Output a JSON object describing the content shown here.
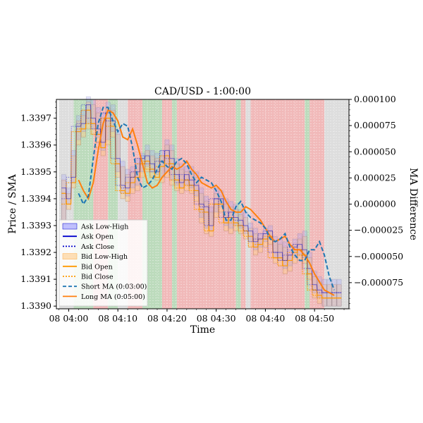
{
  "chart_data": {
    "type": "line",
    "title": "CAD/USD - 1:00:00",
    "xlabel": "Time",
    "ylabel": "Price / SMA",
    "y2label": "MA Difference",
    "x_range": [
      "04:00 -2m",
      "04:57"
    ],
    "ylim": [
      1.33899,
      1.33977
    ],
    "y2lim": [
      -0.0001,
      0.0001
    ],
    "x_ticks": [
      "08 04:00",
      "08 04:10",
      "08 04:20",
      "08 04:30",
      "08 04:40",
      "08 04:50"
    ],
    "y_ticks": [
      "1.3390",
      "1.3391",
      "1.3392",
      "1.3393",
      "1.3394",
      "1.3395",
      "1.3396",
      "1.3397"
    ],
    "y2_ticks": [
      "0.000100",
      "0.000075",
      "0.000050",
      "0.000025",
      "0.000000",
      "−0.000025",
      "−0.000050",
      "−0.000075"
    ],
    "legend": {
      "position": "lower-left",
      "entries": [
        "Ask Low-High",
        "Ask Open",
        "Ask Close",
        "Bid Low-High",
        "Bid Open",
        "Bid Close",
        "Short MA (0:03:00)",
        "Long MA (0:05:00)"
      ]
    },
    "regions": [
      {
        "from": -2,
        "to": 1,
        "signal": "neutral"
      },
      {
        "from": 1,
        "to": 5,
        "signal": "positive"
      },
      {
        "from": 5,
        "to": 8,
        "signal": "negative"
      },
      {
        "from": 8,
        "to": 10,
        "signal": "positive"
      },
      {
        "from": 10,
        "to": 12,
        "signal": "neutral"
      },
      {
        "from": 12,
        "to": 15,
        "signal": "negative"
      },
      {
        "from": 15,
        "to": 19,
        "signal": "positive"
      },
      {
        "from": 19,
        "to": 21,
        "signal": "negative"
      },
      {
        "from": 21,
        "to": 22,
        "signal": "positive"
      },
      {
        "from": 22,
        "to": 34,
        "signal": "negative"
      },
      {
        "from": 34,
        "to": 35,
        "signal": "positive"
      },
      {
        "from": 35,
        "to": 36,
        "signal": "negative"
      },
      {
        "from": 36,
        "to": 37,
        "signal": "neutral"
      },
      {
        "from": 37,
        "to": 48,
        "signal": "negative"
      },
      {
        "from": 48,
        "to": 49,
        "signal": "positive"
      },
      {
        "from": 49,
        "to": 52,
        "signal": "negative"
      },
      {
        "from": 52,
        "to": 57,
        "signal": "neutral"
      }
    ],
    "x_minutes": [
      -1,
      0,
      1,
      2,
      3,
      4,
      5,
      6,
      7,
      8,
      9,
      10,
      11,
      12,
      13,
      14,
      15,
      16,
      17,
      18,
      19,
      20,
      21,
      22,
      23,
      24,
      25,
      26,
      27,
      28,
      29,
      30,
      31,
      32,
      33,
      34,
      35,
      36,
      37,
      38,
      39,
      40,
      41,
      42,
      43,
      44,
      45,
      46,
      47,
      48,
      49,
      50,
      51,
      52,
      53,
      54,
      55
    ],
    "series": [
      {
        "name": "Short MA (0:03:00)",
        "values": [
          1.33942,
          1.33938,
          1.33941,
          1.33955,
          1.33968,
          1.33974,
          1.33974,
          1.33969,
          1.33965,
          1.33968,
          1.33967,
          1.33959,
          1.33948,
          1.33944,
          1.33945,
          1.33947,
          1.33951,
          1.33954,
          1.33952,
          1.33951,
          1.33954,
          1.33955,
          1.33953,
          1.33949,
          1.33946,
          1.33948,
          1.33947,
          1.33946,
          1.33943,
          1.33939,
          1.33932,
          1.33932,
          1.33937,
          1.33939,
          1.33935,
          1.33933,
          1.33932,
          1.33931,
          1.33929,
          1.33925,
          1.33924,
          1.33925,
          1.33927,
          1.33922,
          1.33919,
          1.33917,
          1.33917,
          1.33921,
          1.33921,
          1.33924,
          1.33919,
          1.33911,
          1.33906
        ]
      },
      {
        "name": "Long MA (0:05:00)",
        "values": [
          1.33947,
          1.33943,
          1.3394,
          1.33946,
          1.33958,
          1.33968,
          1.33973,
          1.33972,
          1.33969,
          1.33963,
          1.33962,
          1.33966,
          1.3396,
          1.33953,
          1.33946,
          1.33944,
          1.33945,
          1.33948,
          1.3395,
          1.33952,
          1.33951,
          1.33952,
          1.33954,
          1.33951,
          1.33949,
          1.33946,
          1.33945,
          1.33944,
          1.33945,
          1.33943,
          1.33939,
          1.33936,
          1.33935,
          1.33935,
          1.33937,
          1.33936,
          1.33934,
          1.33932,
          1.33929,
          1.33926,
          1.33924,
          1.33925,
          1.33926,
          1.33923,
          1.33921,
          1.33921,
          1.33919,
          1.33916,
          1.33912,
          1.33909,
          1.33906,
          1.33905,
          1.33904
        ]
      },
      {
        "name": "Ask Low-High",
        "low": [
          1.33932,
          1.33938,
          1.33946,
          1.33962,
          1.33965,
          1.33968,
          1.33966,
          1.33963,
          1.33958,
          1.33962,
          1.33965,
          1.3395,
          1.33942,
          1.33941,
          1.33944,
          1.33945,
          1.3395,
          1.33952,
          1.3395,
          1.33949,
          1.33948,
          1.3395,
          1.33947,
          1.33945,
          1.33944,
          1.33945,
          1.33944,
          1.33941,
          1.33933,
          1.33929,
          1.33928,
          1.33935,
          1.33937,
          1.3393,
          1.33929,
          1.3393,
          1.33929,
          1.33927,
          1.33924,
          1.33921,
          1.33922,
          1.33924,
          1.33925,
          1.33918,
          1.33917,
          1.33914,
          1.33915,
          1.33918,
          1.33919,
          1.33918,
          1.33912,
          1.33905,
          1.33903,
          1.339,
          1.339,
          1.339,
          1.339
        ],
        "high": [
          1.33949,
          1.33944,
          1.33958,
          1.33971,
          1.33973,
          1.33978,
          1.33977,
          1.33974,
          1.33972,
          1.33976,
          1.33975,
          1.33966,
          1.33954,
          1.33951,
          1.33952,
          1.33955,
          1.33957,
          1.3396,
          1.33958,
          1.33957,
          1.33958,
          1.33962,
          1.3396,
          1.33955,
          1.33953,
          1.33952,
          1.33952,
          1.3395,
          1.33944,
          1.33941,
          1.33937,
          1.33944,
          1.33943,
          1.3394,
          1.33939,
          1.33938,
          1.33936,
          1.33935,
          1.33931,
          1.33929,
          1.33927,
          1.33929,
          1.3393,
          1.33926,
          1.33925,
          1.33924,
          1.33921,
          1.33925,
          1.33927,
          1.33928,
          1.3392,
          1.33913,
          1.33911,
          1.3391,
          1.3391,
          1.3391,
          1.3391
        ]
      },
      {
        "name": "Ask Open",
        "values": [
          1.33944,
          1.3394,
          1.33948,
          1.33967,
          1.33968,
          1.33975,
          1.3397,
          1.33966,
          1.33961,
          1.33972,
          1.33969,
          1.33955,
          1.33945,
          1.33944,
          1.33948,
          1.3395,
          1.33955,
          1.33956,
          1.33953,
          1.3395,
          1.33954,
          1.33958,
          1.33955,
          1.33949,
          1.33946,
          1.33949,
          1.33947,
          1.33945,
          1.33938,
          1.33937,
          1.3393,
          1.3394,
          1.3394,
          1.33933,
          1.33935,
          1.33933,
          1.33932,
          1.3393,
          1.33928,
          1.33924,
          1.33925,
          1.33927,
          1.33928,
          1.3392,
          1.3392,
          1.33917,
          1.33919,
          1.33922,
          1.33923,
          1.33921,
          1.33914,
          1.33908,
          1.33906,
          1.33905,
          1.33905,
          1.33905,
          1.33905
        ]
      },
      {
        "name": "Ask Close",
        "values": [
          1.3394,
          1.33948,
          1.33967,
          1.33968,
          1.33975,
          1.3397,
          1.33966,
          1.33961,
          1.33972,
          1.33969,
          1.33955,
          1.33945,
          1.33944,
          1.33948,
          1.3395,
          1.33955,
          1.33956,
          1.33953,
          1.3395,
          1.33954,
          1.33958,
          1.33955,
          1.33949,
          1.33946,
          1.33949,
          1.33947,
          1.33945,
          1.33938,
          1.33937,
          1.3393,
          1.3394,
          1.3394,
          1.33933,
          1.33935,
          1.33933,
          1.33932,
          1.3393,
          1.33928,
          1.33924,
          1.33925,
          1.33927,
          1.33928,
          1.3392,
          1.3392,
          1.33917,
          1.33919,
          1.33922,
          1.33923,
          1.33921,
          1.33914,
          1.33908,
          1.33906,
          1.33905,
          1.33905,
          1.33905,
          1.33905,
          1.33905
        ]
      },
      {
        "name": "Bid Low-High",
        "low": [
          1.3393,
          1.33936,
          1.33944,
          1.3396,
          1.33963,
          1.33966,
          1.33964,
          1.33961,
          1.33956,
          1.3396,
          1.33963,
          1.33948,
          1.3394,
          1.33939,
          1.33942,
          1.33943,
          1.33948,
          1.3395,
          1.33948,
          1.33947,
          1.33946,
          1.33948,
          1.33945,
          1.33943,
          1.33942,
          1.33943,
          1.33942,
          1.33939,
          1.33931,
          1.33927,
          1.33926,
          1.33933,
          1.33935,
          1.33928,
          1.33927,
          1.33928,
          1.33927,
          1.33925,
          1.33922,
          1.33919,
          1.3392,
          1.33922,
          1.33923,
          1.33916,
          1.33915,
          1.33912,
          1.33913,
          1.33916,
          1.33917,
          1.33916,
          1.3391,
          1.33903,
          1.33901,
          1.339,
          1.339,
          1.339,
          1.339
        ],
        "high": [
          1.33947,
          1.33942,
          1.33956,
          1.33969,
          1.33971,
          1.33976,
          1.33975,
          1.33972,
          1.3397,
          1.33974,
          1.33973,
          1.33964,
          1.33952,
          1.33949,
          1.3395,
          1.33953,
          1.33955,
          1.33958,
          1.33956,
          1.33955,
          1.33956,
          1.3396,
          1.33958,
          1.33953,
          1.33951,
          1.3395,
          1.3395,
          1.33948,
          1.33942,
          1.33939,
          1.33935,
          1.33942,
          1.33941,
          1.33938,
          1.33937,
          1.33936,
          1.33934,
          1.33933,
          1.33929,
          1.33927,
          1.33925,
          1.33927,
          1.33928,
          1.33924,
          1.33923,
          1.33922,
          1.33919,
          1.33923,
          1.33925,
          1.33926,
          1.33918,
          1.33911,
          1.33909,
          1.33908,
          1.33908,
          1.33908,
          1.33908
        ]
      },
      {
        "name": "Bid Open",
        "values": [
          1.33942,
          1.33938,
          1.33946,
          1.33965,
          1.33966,
          1.33973,
          1.33968,
          1.33964,
          1.33959,
          1.3397,
          1.33967,
          1.33953,
          1.33943,
          1.33942,
          1.33946,
          1.33948,
          1.33953,
          1.33954,
          1.33951,
          1.33948,
          1.33952,
          1.33956,
          1.33953,
          1.33947,
          1.33944,
          1.33947,
          1.33945,
          1.33943,
          1.33936,
          1.33935,
          1.33928,
          1.33938,
          1.33938,
          1.33931,
          1.33933,
          1.33931,
          1.3393,
          1.33928,
          1.33926,
          1.33922,
          1.33923,
          1.33925,
          1.33926,
          1.33918,
          1.33918,
          1.33915,
          1.33917,
          1.3392,
          1.33921,
          1.33919,
          1.33912,
          1.33906,
          1.33904,
          1.33903,
          1.33903,
          1.33903,
          1.33903
        ]
      },
      {
        "name": "Bid Close",
        "values": [
          1.33938,
          1.33946,
          1.33965,
          1.33966,
          1.33973,
          1.33968,
          1.33964,
          1.33959,
          1.3397,
          1.33967,
          1.33953,
          1.33943,
          1.33942,
          1.33946,
          1.33948,
          1.33953,
          1.33954,
          1.33951,
          1.33948,
          1.33952,
          1.33956,
          1.33953,
          1.33947,
          1.33944,
          1.33947,
          1.33945,
          1.33943,
          1.33936,
          1.33935,
          1.33928,
          1.33938,
          1.33938,
          1.33931,
          1.33933,
          1.33931,
          1.3393,
          1.33928,
          1.33926,
          1.33922,
          1.33923,
          1.33925,
          1.33926,
          1.33918,
          1.33918,
          1.33915,
          1.33917,
          1.3392,
          1.33921,
          1.33919,
          1.33912,
          1.33906,
          1.33904,
          1.33903,
          1.33903,
          1.33903,
          1.33903,
          1.33903
        ]
      }
    ],
    "grid": true,
    "colors": {
      "ask": "#0000cc",
      "ask_fill": "#9999ff",
      "bid": "#ff9900",
      "bid_fill": "#ffcc88",
      "short_ma": "#1f77b4",
      "long_ma": "#ff7f0e",
      "positive": "#8fc38f",
      "negative": "#e88a8a",
      "neutral": "#d9d9d9"
    }
  }
}
